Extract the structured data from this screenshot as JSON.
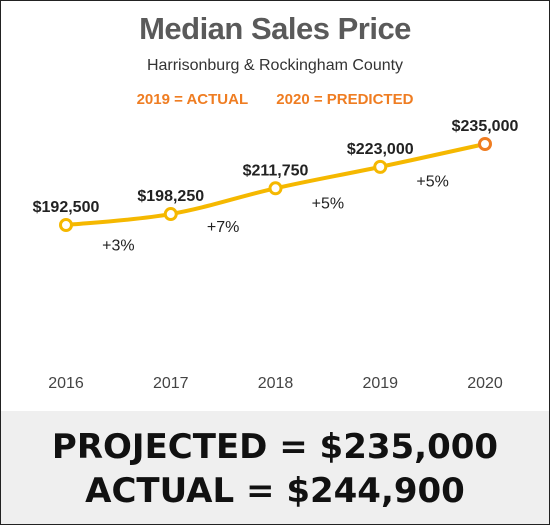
{
  "chart_data": {
    "type": "line",
    "title": "Median Sales Price",
    "subtitle": "Harrisonburg & Rockingham County",
    "legend": {
      "actual": "2019 = ACTUAL",
      "predicted": "2020 = PREDICTED"
    },
    "categories": [
      "2016",
      "2017",
      "2018",
      "2019",
      "2020"
    ],
    "values": [
      192500,
      198250,
      211750,
      223000,
      235000
    ],
    "value_labels": [
      "$192,500",
      "$198,250",
      "$211,750",
      "$223,000",
      "$235,000"
    ],
    "change_labels": [
      "+3%",
      "+7%",
      "+5%",
      "+5%"
    ],
    "ylim": [
      150000,
      240000
    ],
    "grid": false,
    "colors": {
      "line": "#f5b800",
      "predicted_marker": "#ef7d22",
      "legend_text": "#ef7d22",
      "title_text": "#5a5a5a"
    }
  },
  "footer": {
    "projected": "PROJECTED = $235,000",
    "actual": "ACTUAL = $244,900"
  }
}
